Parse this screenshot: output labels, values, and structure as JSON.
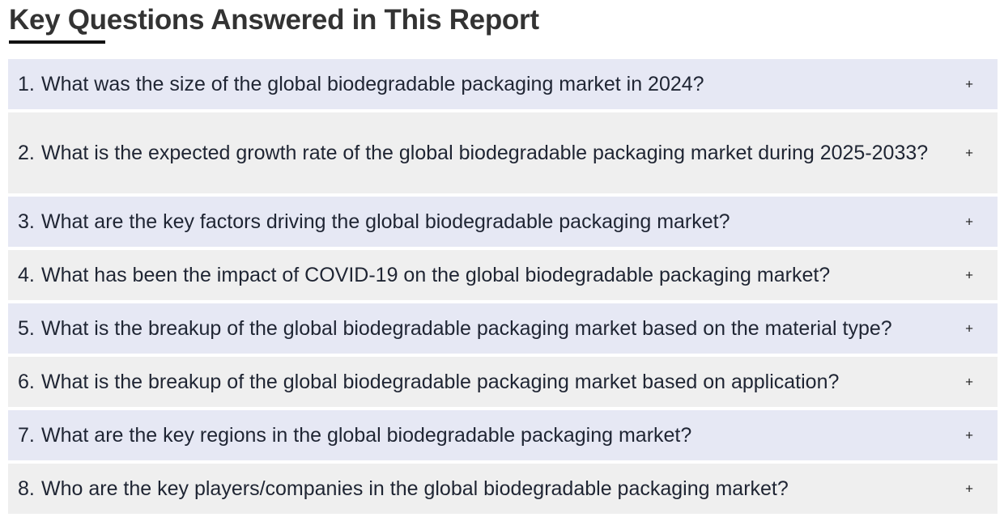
{
  "section": {
    "title": "Key Questions Answered in This Report"
  },
  "faq": {
    "expand_symbol": "+",
    "items": [
      {
        "number": "1.",
        "question": "What was the size of the global biodegradable packaging market in 2024?"
      },
      {
        "number": "2.",
        "question": "What is the expected growth rate of the global biodegradable packaging market during 2025-2033?"
      },
      {
        "number": "3.",
        "question": "What are the key factors driving the global biodegradable packaging market?"
      },
      {
        "number": "4.",
        "question": "What has been the impact of COVID-19 on the global biodegradable packaging market?"
      },
      {
        "number": "5.",
        "question": "What is the breakup of the global biodegradable packaging market based on the material type?"
      },
      {
        "number": "6.",
        "question": "What is the breakup of the global biodegradable packaging market based on application?"
      },
      {
        "number": "7.",
        "question": "What are the key regions in the global biodegradable packaging market?"
      },
      {
        "number": "8.",
        "question": "Who are the key players/companies in the global biodegradable packaging market?"
      }
    ]
  },
  "colors": {
    "row_odd": "#e6e8f4",
    "row_even": "#efefef",
    "text": "#1f2533",
    "heading": "#333333"
  }
}
